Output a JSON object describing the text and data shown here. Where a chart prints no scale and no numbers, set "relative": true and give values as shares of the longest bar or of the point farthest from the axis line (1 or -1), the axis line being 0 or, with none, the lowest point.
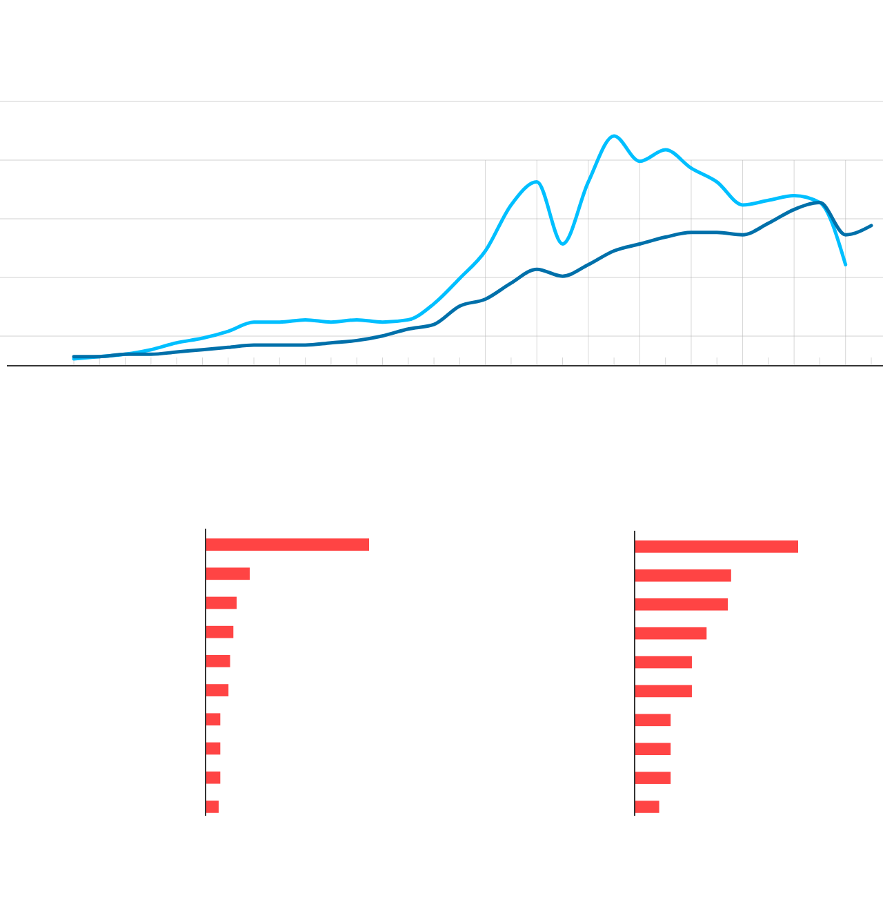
{
  "chart_data": [
    {
      "type": "line",
      "relative": true,
      "grid": true,
      "categories": [
        null,
        null,
        null,
        null,
        null,
        null,
        null,
        null,
        null,
        null,
        null,
        null,
        null,
        null,
        null,
        null,
        null,
        null,
        null,
        null,
        null,
        null,
        null,
        null,
        null,
        null,
        null,
        null,
        null,
        null,
        null,
        null
      ],
      "series": [
        {
          "color": "#00bfff",
          "values": [
            0.03,
            0.04,
            0.05,
            0.07,
            0.1,
            0.12,
            0.15,
            0.19,
            0.19,
            0.2,
            0.19,
            0.2,
            0.19,
            0.2,
            0.27,
            0.38,
            0.5,
            0.7,
            0.8,
            0.53,
            0.8,
            1.0,
            0.89,
            0.94,
            0.86,
            0.8,
            0.7,
            0.72,
            0.74,
            0.71,
            0.44,
            null
          ]
        },
        {
          "color": "#0070aa",
          "values": [
            0.04,
            0.04,
            0.05,
            0.05,
            0.06,
            0.07,
            0.08,
            0.09,
            0.09,
            0.09,
            0.1,
            0.11,
            0.13,
            0.16,
            0.18,
            0.26,
            0.29,
            0.36,
            0.42,
            0.39,
            0.44,
            0.5,
            0.53,
            0.56,
            0.58,
            0.58,
            0.57,
            0.62,
            0.68,
            0.71,
            0.57,
            0.61
          ]
        }
      ]
    },
    {
      "type": "bar",
      "orientation": "horizontal",
      "relative": true,
      "categories": [
        null,
        null,
        null,
        null,
        null,
        null,
        null,
        null,
        null,
        null
      ],
      "values": [
        1,
        0.27,
        0.19,
        0.17,
        0.15,
        0.14,
        0.09,
        0.09,
        0.09,
        0.08
      ],
      "color": "#ff4444"
    },
    {
      "type": "bar",
      "orientation": "horizontal",
      "relative": true,
      "categories": [
        null,
        null,
        null,
        null,
        null,
        null,
        null,
        null,
        null,
        null
      ],
      "values": [
        1,
        0.59,
        0.57,
        0.44,
        0.35,
        0.35,
        0.22,
        0.22,
        0.22,
        0.15
      ],
      "color": "#ff4444"
    }
  ]
}
